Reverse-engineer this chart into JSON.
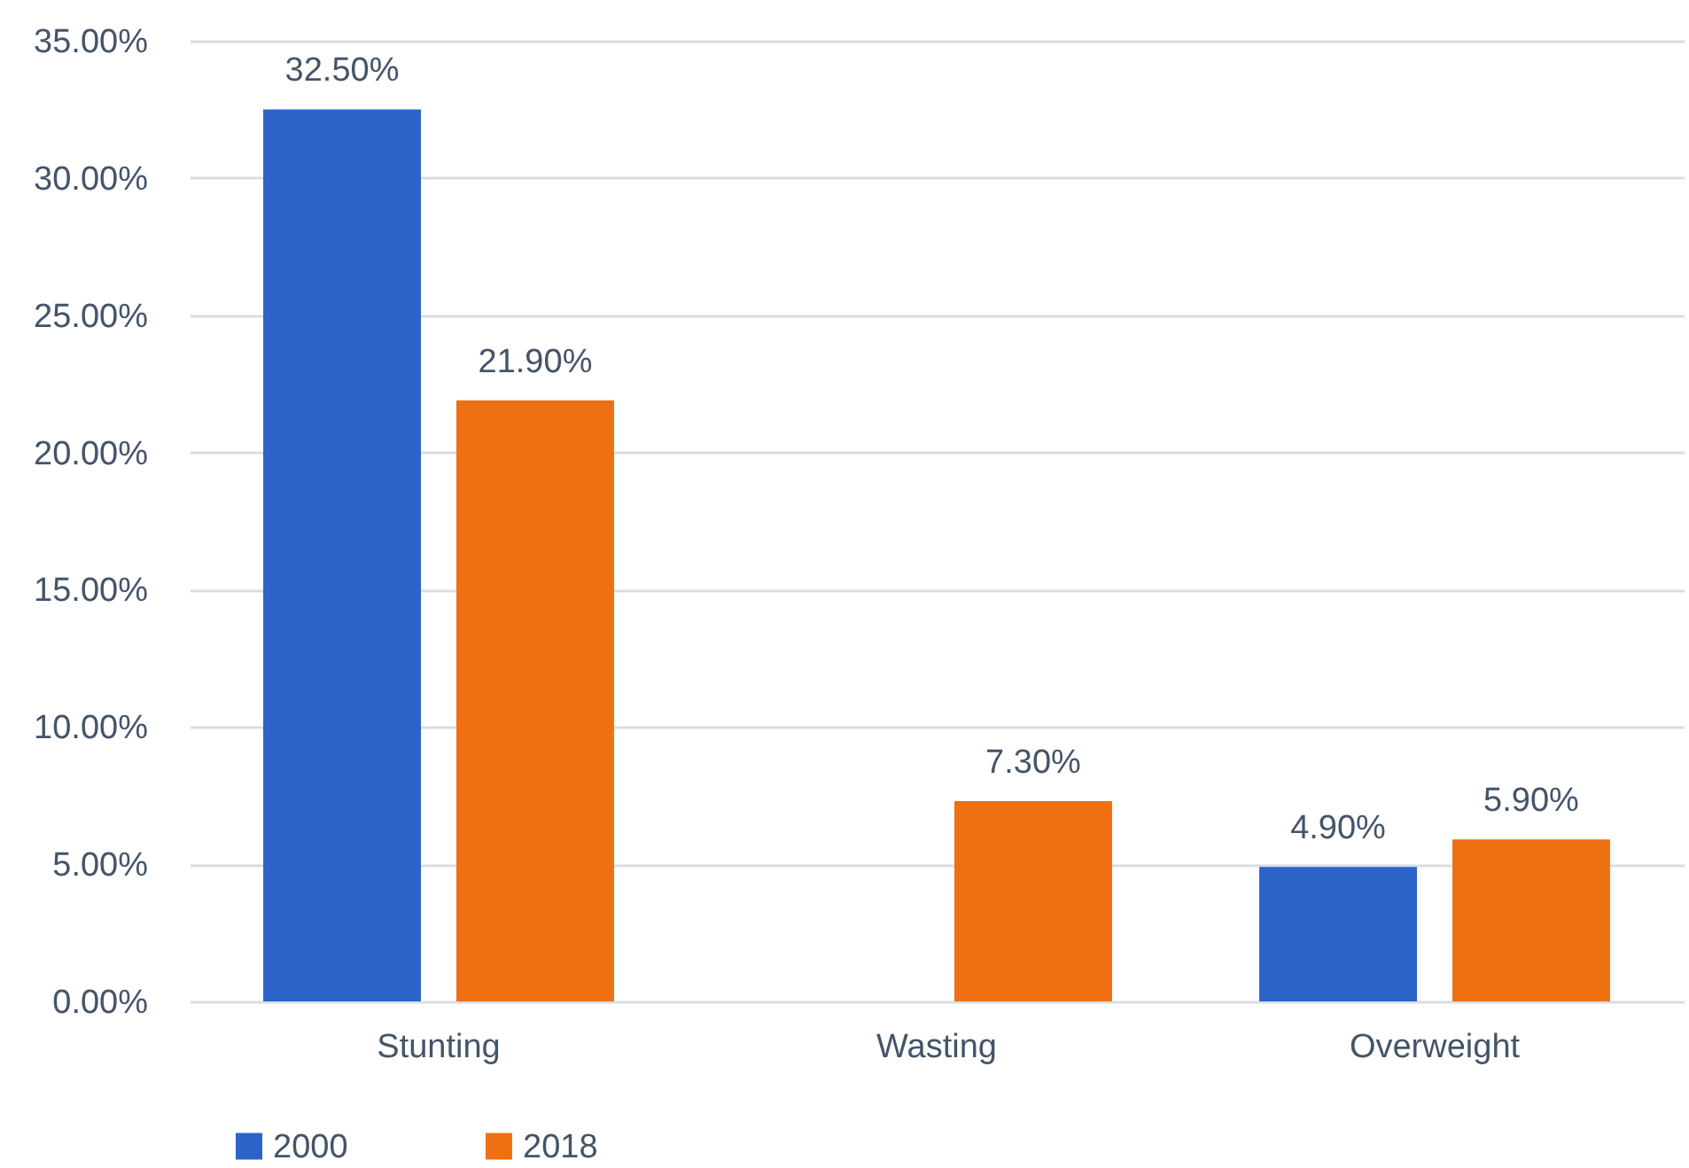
{
  "chart_data": {
    "type": "bar",
    "categories": [
      "Stunting",
      "Wasting",
      "Overweight"
    ],
    "series": [
      {
        "name": "2000",
        "color": "#2b63c9",
        "values": [
          32.5,
          null,
          4.9
        ],
        "value_labels": [
          "32.50%",
          null,
          "4.90%"
        ]
      },
      {
        "name": "2018",
        "color": "#ee7012",
        "values": [
          21.9,
          7.3,
          5.9
        ],
        "value_labels": [
          "21.90%",
          "7.30%",
          "5.90%"
        ]
      }
    ],
    "ylim": [
      0,
      35
    ],
    "yticks": [
      {
        "value": 0,
        "label": "0.00%"
      },
      {
        "value": 5,
        "label": "5.00%"
      },
      {
        "value": 10,
        "label": "10.00%"
      },
      {
        "value": 15,
        "label": "15.00%"
      },
      {
        "value": 20,
        "label": "20.00%"
      },
      {
        "value": 25,
        "label": "25.00%"
      },
      {
        "value": 30,
        "label": "30.00%"
      },
      {
        "value": 35,
        "label": "35.00%"
      }
    ],
    "grid": "y",
    "legend": "bottom left"
  }
}
